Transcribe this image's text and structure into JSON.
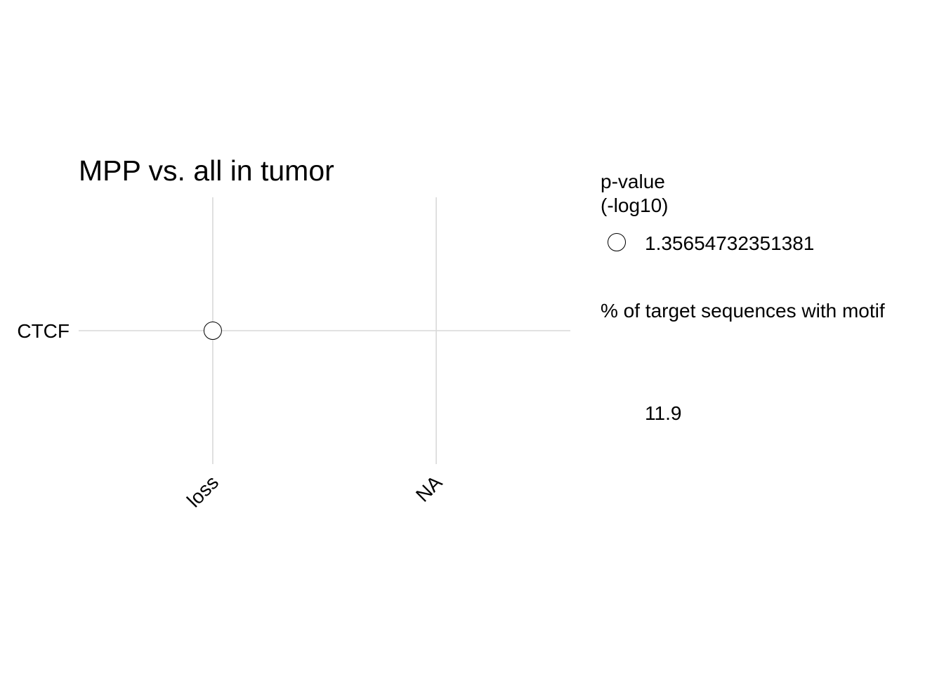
{
  "chart_data": {
    "type": "scatter",
    "title": "MPP vs. all in tumor",
    "x_categories": [
      "loss",
      "NA"
    ],
    "y_categories": [
      "CTCF"
    ],
    "points": [
      {
        "x": "loss",
        "y": "CTCF",
        "pvalue_neg_log10": 1.35654732351381,
        "pct_target_with_motif": 11.9
      }
    ],
    "grid": true,
    "legend_placement": "right",
    "legend": {
      "color_title_line1": "p-value",
      "color_title_line2": "(-log10)",
      "color_label": "1.35654732351381",
      "size_title": "% of target sequences with motif",
      "size_label": "11.9"
    },
    "point_fill": "#ffffff",
    "point_stroke": "#000000",
    "grid_color": "#d9d9d9"
  }
}
